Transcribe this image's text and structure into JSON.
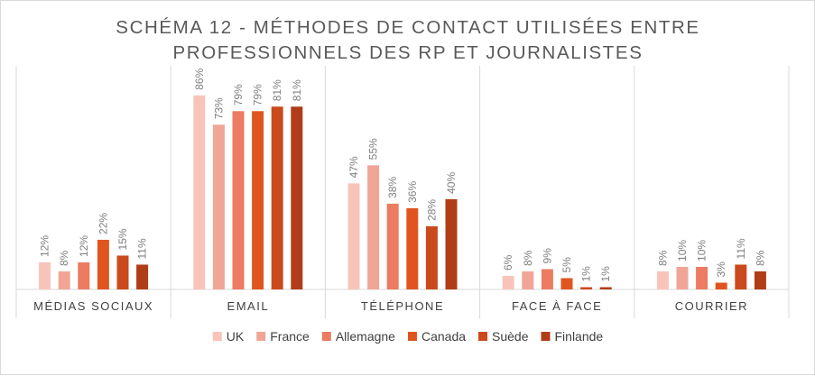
{
  "chart_data": {
    "type": "bar",
    "title_lines": [
      "SCHÉMA 12 - MÉTHODES DE CONTACT UTILISÉES ENTRE",
      "PROFESSIONNELS DES RP ET JOURNALISTES"
    ],
    "categories": [
      "MÉDIAS SOCIAUX",
      "EMAIL",
      "TÉLÉPHONE",
      "FACE À FACE",
      "COURRIER"
    ],
    "series": [
      {
        "name": "UK",
        "color": "#f8c4ba",
        "values": [
          12,
          86,
          47,
          6,
          8
        ]
      },
      {
        "name": "France",
        "color": "#f1a596",
        "values": [
          8,
          73,
          55,
          8,
          10
        ]
      },
      {
        "name": "Allemagne",
        "color": "#ec7b61",
        "values": [
          12,
          79,
          38,
          9,
          10
        ]
      },
      {
        "name": "Canada",
        "color": "#e0551f",
        "values": [
          22,
          79,
          36,
          5,
          3
        ]
      },
      {
        "name": "Suède",
        "color": "#cb4a1d",
        "values": [
          15,
          81,
          28,
          1,
          11
        ]
      },
      {
        "name": "Finlande",
        "color": "#b03d17",
        "values": [
          11,
          81,
          40,
          1,
          8
        ]
      }
    ],
    "value_suffix": "%",
    "ylim": [
      0,
      100
    ],
    "grid": false,
    "legend_position": "bottom"
  }
}
